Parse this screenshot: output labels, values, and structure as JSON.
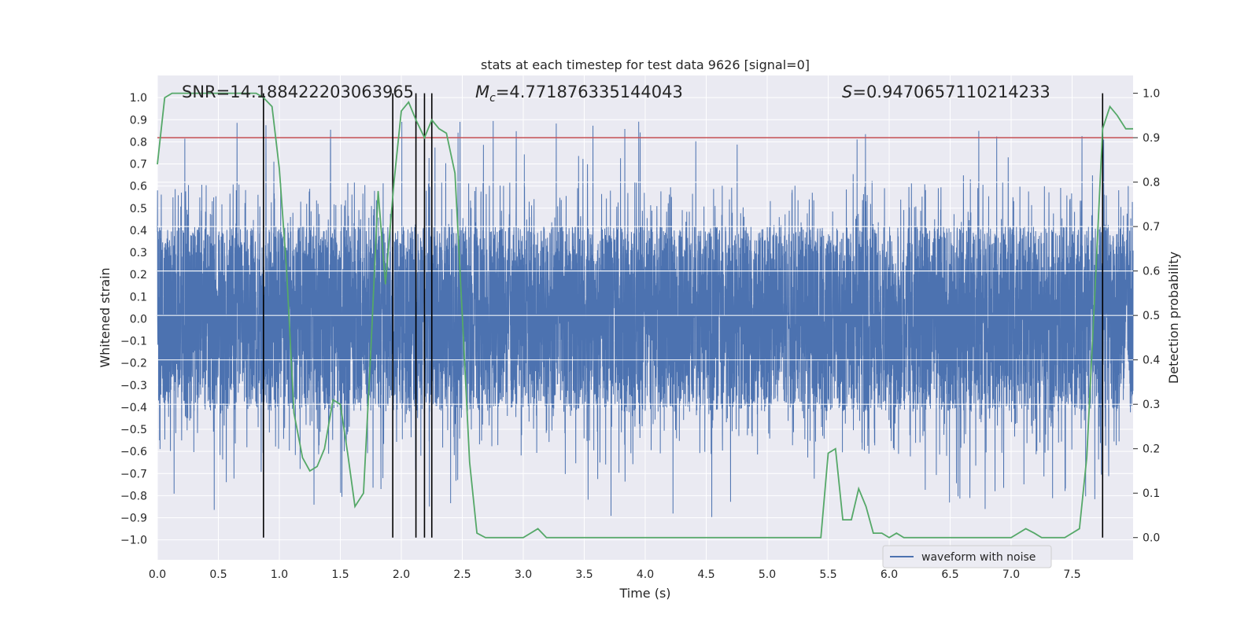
{
  "chart_data": {
    "type": "line",
    "title": "stats at each timestep for test data 9626 [signal=0]",
    "xlabel": "Time (s)",
    "ylabel": "Whitened strain",
    "y2label": "Detection probability",
    "xlim": [
      0.0,
      8.0
    ],
    "ylim": [
      -1.09,
      1.1
    ],
    "y2lim": [
      -0.05,
      1.04
    ],
    "xticks": [
      0.0,
      0.5,
      1.0,
      1.5,
      2.0,
      2.5,
      3.0,
      3.5,
      4.0,
      4.5,
      5.0,
      5.5,
      6.0,
      6.5,
      7.0,
      7.5
    ],
    "xtick_labels": [
      "0.0",
      "0.5",
      "1.0",
      "1.5",
      "2.0",
      "2.5",
      "3.0",
      "3.5",
      "4.0",
      "4.5",
      "5.0",
      "5.5",
      "6.0",
      "6.5",
      "7.0",
      "7.5"
    ],
    "yticks": [
      1.0,
      0.9,
      0.8,
      0.7,
      0.6,
      0.5,
      0.4,
      0.3,
      0.2,
      0.1,
      0.0,
      -0.1,
      -0.2,
      -0.3,
      -0.4,
      -0.5,
      -0.6,
      -0.7,
      -0.8,
      -0.9,
      -1.0
    ],
    "ytick_labels": [
      "1.0",
      "0.9",
      "0.8",
      "0.7",
      "0.6",
      "0.5",
      "0.4",
      "0.3",
      "0.2",
      "0.1",
      "0.0",
      "−0.1",
      "−0.2",
      "−0.3",
      "−0.4",
      "−0.5",
      "−0.6",
      "−0.7",
      "−0.8",
      "−0.9",
      "−1.0"
    ],
    "y2ticks": [
      1.0,
      0.9,
      0.8,
      0.7,
      0.6,
      0.5,
      0.4,
      0.3,
      0.2,
      0.1,
      0.0
    ],
    "y2tick_labels": [
      "1.0",
      "0.9",
      "0.8",
      "0.7",
      "0.6",
      "0.5",
      "0.4",
      "0.3",
      "0.2",
      "0.1",
      "0.0"
    ],
    "annotations": {
      "snr": "SNR=14.188422203063965",
      "mc_symbol": "M",
      "mc_sub": "c",
      "mc_value": "=4.771876335144043",
      "s_symbol": "S",
      "s_value": "=0.9470657110214233"
    },
    "threshold": {
      "axis": "y2",
      "value": 0.9,
      "color": "#c44e52"
    },
    "vertical_lines": [
      0.87,
      1.93,
      2.12,
      2.19,
      2.25,
      7.75
    ],
    "waveform": {
      "name": "waveform with noise",
      "color": "#4c72b0",
      "num_samples": 8000,
      "core_amplitude": 0.42,
      "seed": 9626
    },
    "detection_probability": {
      "name": "detection probability",
      "color": "#55a868",
      "x": [
        0.0,
        0.06,
        0.12,
        0.18,
        0.25,
        0.31,
        0.37,
        0.44,
        0.5,
        0.56,
        0.62,
        0.69,
        0.75,
        0.81,
        0.87,
        0.94,
        1.0,
        1.06,
        1.12,
        1.19,
        1.25,
        1.31,
        1.37,
        1.44,
        1.5,
        1.56,
        1.62,
        1.69,
        1.75,
        1.81,
        1.87,
        1.94,
        2.0,
        2.06,
        2.12,
        2.19,
        2.25,
        2.31,
        2.37,
        2.44,
        2.5,
        2.56,
        2.62,
        2.69,
        2.75,
        2.81,
        2.87,
        2.94,
        3.0,
        3.06,
        3.12,
        3.19,
        3.25,
        3.31,
        3.37,
        3.44,
        3.5,
        3.56,
        3.62,
        3.69,
        3.75,
        3.81,
        3.87,
        3.94,
        4.0,
        4.06,
        4.12,
        4.19,
        4.25,
        4.31,
        4.37,
        4.44,
        4.5,
        4.56,
        4.62,
        4.69,
        4.75,
        4.81,
        4.87,
        4.94,
        5.0,
        5.06,
        5.12,
        5.19,
        5.25,
        5.31,
        5.37,
        5.44,
        5.5,
        5.56,
        5.62,
        5.69,
        5.75,
        5.81,
        5.87,
        5.94,
        6.0,
        6.06,
        6.12,
        6.19,
        6.25,
        6.31,
        6.37,
        6.44,
        6.5,
        6.56,
        6.62,
        6.69,
        6.75,
        6.81,
        6.87,
        6.94,
        7.0,
        7.06,
        7.12,
        7.19,
        7.25,
        7.31,
        7.37,
        7.44,
        7.5,
        7.56,
        7.62,
        7.69,
        7.75,
        7.81,
        7.87,
        7.94,
        8.0
      ],
      "y": [
        0.84,
        0.99,
        1.0,
        1.0,
        1.0,
        1.0,
        1.0,
        1.0,
        1.0,
        1.0,
        1.0,
        1.0,
        1.0,
        1.0,
        0.99,
        0.97,
        0.83,
        0.6,
        0.28,
        0.18,
        0.15,
        0.16,
        0.2,
        0.31,
        0.3,
        0.19,
        0.07,
        0.1,
        0.42,
        0.78,
        0.57,
        0.8,
        0.96,
        0.98,
        0.94,
        0.9,
        0.94,
        0.92,
        0.91,
        0.82,
        0.5,
        0.17,
        0.01,
        0.0,
        0.0,
        0.0,
        0.0,
        0.0,
        0.0,
        0.01,
        0.02,
        0.0,
        0.0,
        0.0,
        0.0,
        0.0,
        0.0,
        0.0,
        0.0,
        0.0,
        0.0,
        0.0,
        0.0,
        0.0,
        0.0,
        0.0,
        0.0,
        0.0,
        0.0,
        0.0,
        0.0,
        0.0,
        0.0,
        0.0,
        0.0,
        0.0,
        0.0,
        0.0,
        0.0,
        0.0,
        0.0,
        0.0,
        0.0,
        0.0,
        0.0,
        0.0,
        0.0,
        0.0,
        0.19,
        0.2,
        0.04,
        0.04,
        0.11,
        0.07,
        0.01,
        0.01,
        0.0,
        0.01,
        0.0,
        0.0,
        0.0,
        0.0,
        0.0,
        0.0,
        0.0,
        0.0,
        0.0,
        0.0,
        0.0,
        0.0,
        0.0,
        0.0,
        0.0,
        0.01,
        0.02,
        0.01,
        0.0,
        0.0,
        0.0,
        0.0,
        0.01,
        0.02,
        0.18,
        0.57,
        0.92,
        0.97,
        0.95,
        0.92,
        0.92
      ]
    },
    "legend": {
      "entry": "waveform with noise",
      "position": "lower-right"
    }
  }
}
